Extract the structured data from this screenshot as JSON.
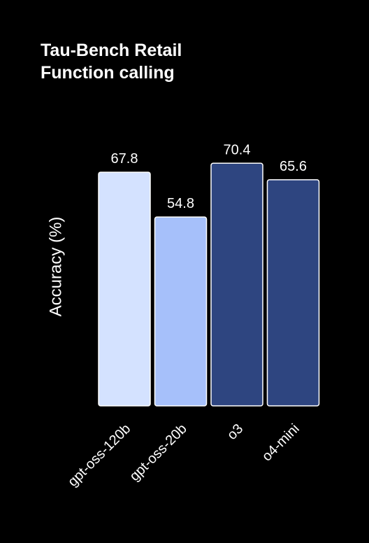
{
  "chart_data": {
    "type": "bar",
    "title": [
      "Tau-Bench Retail",
      "Function calling"
    ],
    "xlabel": "",
    "ylabel": "Accuracy (%)",
    "categories": [
      "gpt-oss-120b",
      "gpt-oss-20b",
      "o3",
      "o4-mini"
    ],
    "values": [
      67.8,
      54.8,
      70.4,
      65.6
    ],
    "value_labels": [
      "67.8",
      "54.8",
      "70.4",
      "65.6"
    ],
    "colors": [
      "#d4e2ff",
      "#a6c0fa",
      "#2e4580",
      "#2e4580"
    ],
    "bar_outline_color": "#ffffff",
    "ylim": [
      0,
      100
    ],
    "grid": false,
    "y_ticks_shown": false
  },
  "background_color": "#000000",
  "text_color": "#ffffff"
}
